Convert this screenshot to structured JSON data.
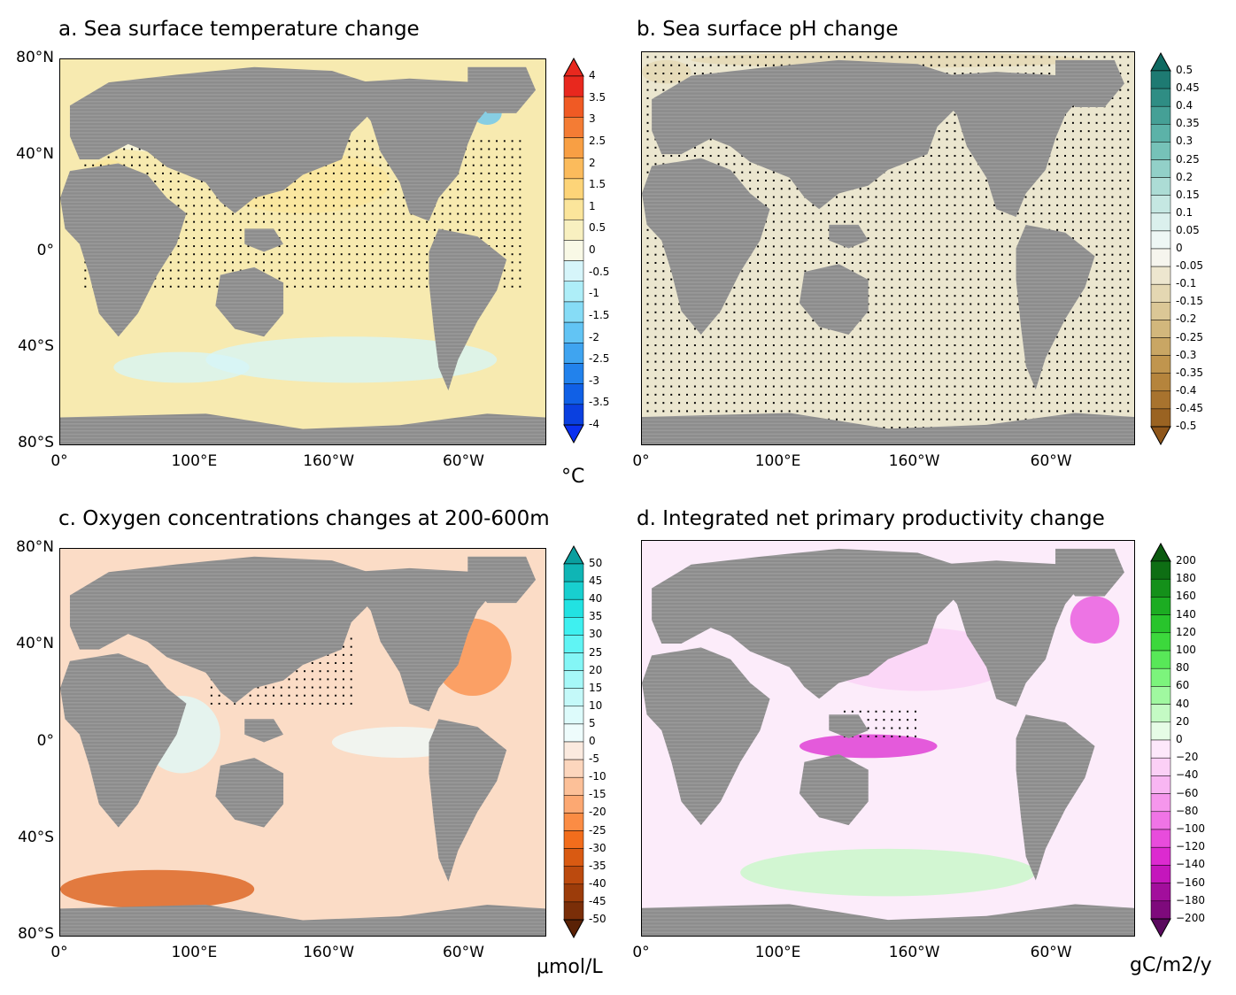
{
  "panels": [
    {
      "id": "a",
      "title": "a. Sea surface temperature change",
      "unit": "°C",
      "lat_labels": [
        "80°N",
        "40°N",
        "0°",
        "40°S",
        "80°S"
      ],
      "lon_labels": [
        "0°",
        "100°E",
        "160°W",
        "60°W"
      ],
      "ocean_color": "#f7eab0",
      "colorbar": {
        "ticks": [
          "4",
          "3.5",
          "3",
          "2.5",
          "2",
          "1.5",
          "1",
          "0.5",
          "0",
          "-0.5",
          "-1",
          "-1.5",
          "-2",
          "-2.5",
          "-3",
          "-3.5",
          "-4"
        ],
        "colors": [
          "#e8281e",
          "#f05a24",
          "#f47c34",
          "#f89f44",
          "#fbbb5c",
          "#fdd478",
          "#fbe59b",
          "#f8f0c0",
          "#f9f9e6",
          "#d6f5fa",
          "#aeeef8",
          "#86dcf6",
          "#62c4f4",
          "#3fa4f0",
          "#2282ec",
          "#1060e6",
          "#0a40e0"
        ],
        "arrow_top": "#e8281e",
        "arrow_bottom": "#0a30f0"
      }
    },
    {
      "id": "b",
      "title": "b. Sea surface pH change",
      "unit": "",
      "lat_labels": [
        "80°N",
        "40°N",
        "0°",
        "40°S",
        "80°S"
      ],
      "lon_labels": [
        "0°",
        "100°E",
        "160°W",
        "60°W"
      ],
      "ocean_color": "#ebe6cf",
      "colorbar": {
        "ticks": [
          "0.5",
          "0.45",
          "0.4",
          "0.35",
          "0.3",
          "0.25",
          "0.2",
          "0.15",
          "0.1",
          "0.05",
          "0",
          "-0.05",
          "-0.1",
          "-0.15",
          "-0.2",
          "-0.25",
          "-0.3",
          "-0.35",
          "-0.4",
          "-0.45",
          "-0.5"
        ],
        "colors": [
          "#1e7a72",
          "#2f8d84",
          "#45a096",
          "#5cb2a8",
          "#76c2b8",
          "#92d0c8",
          "#acdcd5",
          "#c5e7e2",
          "#dbf0ed",
          "#eef7f5",
          "#f6f5ee",
          "#ede6cf",
          "#e4d7b2",
          "#dbc796",
          "#d2b77c",
          "#c9a664",
          "#c0954e",
          "#b5843c",
          "#a8732e",
          "#9a6322"
        ],
        "arrow_top": "#0f6a62",
        "arrow_bottom": "#8f561a"
      }
    },
    {
      "id": "c",
      "title": "c. Oxygen concentrations changes at 200-600m",
      "unit": "μmol/L",
      "lat_labels": [
        "80°N",
        "40°N",
        "0°",
        "40°S",
        "80°S"
      ],
      "lon_labels": [
        "0°",
        "100°E",
        "160°W",
        "60°W"
      ],
      "ocean_color": "#fbdcc6",
      "colorbar": {
        "ticks": [
          "50",
          "45",
          "40",
          "35",
          "30",
          "25",
          "20",
          "15",
          "10",
          "5",
          "0",
          "-5",
          "-10",
          "-15",
          "-20",
          "-25",
          "-30",
          "-35",
          "-40",
          "-45",
          "-50"
        ],
        "colors": [
          "#0fb5b5",
          "#18cfcf",
          "#22e2e2",
          "#3ef0f0",
          "#60f4f4",
          "#84f6f6",
          "#a6f8f8",
          "#c4f9f9",
          "#ddfbfb",
          "#eefcfc",
          "#fbeadf",
          "#fcd6bd",
          "#fcc098",
          "#fca872",
          "#fb8c44",
          "#f26d1c",
          "#d95a12",
          "#bc4a0e",
          "#9c3c0a",
          "#7a2e08"
        ],
        "arrow_top": "#0a9f9f",
        "arrow_bottom": "#5a2206"
      }
    },
    {
      "id": "d",
      "title": "d. Integrated net primary productivity change",
      "unit": "gC/m2/y",
      "lat_labels": [
        "80°N",
        "40°N",
        "0°",
        "40°S",
        "80°S"
      ],
      "lon_labels": [
        "0°",
        "100°E",
        "160°W",
        "60°W"
      ],
      "ocean_color": "#fcecfa",
      "colorbar": {
        "ticks": [
          "200",
          "180",
          "160",
          "140",
          "120",
          "100",
          "80",
          "60",
          "40",
          "20",
          "0",
          "−20",
          "−40",
          "−60",
          "−80",
          "−100",
          "−120",
          "−140",
          "−160",
          "−180",
          "−200"
        ],
        "colors": [
          "#0e6e14",
          "#14901a",
          "#1cac22",
          "#28c42c",
          "#3cd83c",
          "#58e858",
          "#7cf47c",
          "#a0f8a0",
          "#c4fac4",
          "#e6fce6",
          "#fde8fb",
          "#fbd0f6",
          "#f8b6f2",
          "#f596ec",
          "#f074e6",
          "#e84cdc",
          "#dc2ad0",
          "#c416bc",
          "#a20e9c",
          "#7e0a7c"
        ],
        "arrow_top": "#0b5a10",
        "arrow_bottom": "#5a0a5e"
      }
    }
  ]
}
